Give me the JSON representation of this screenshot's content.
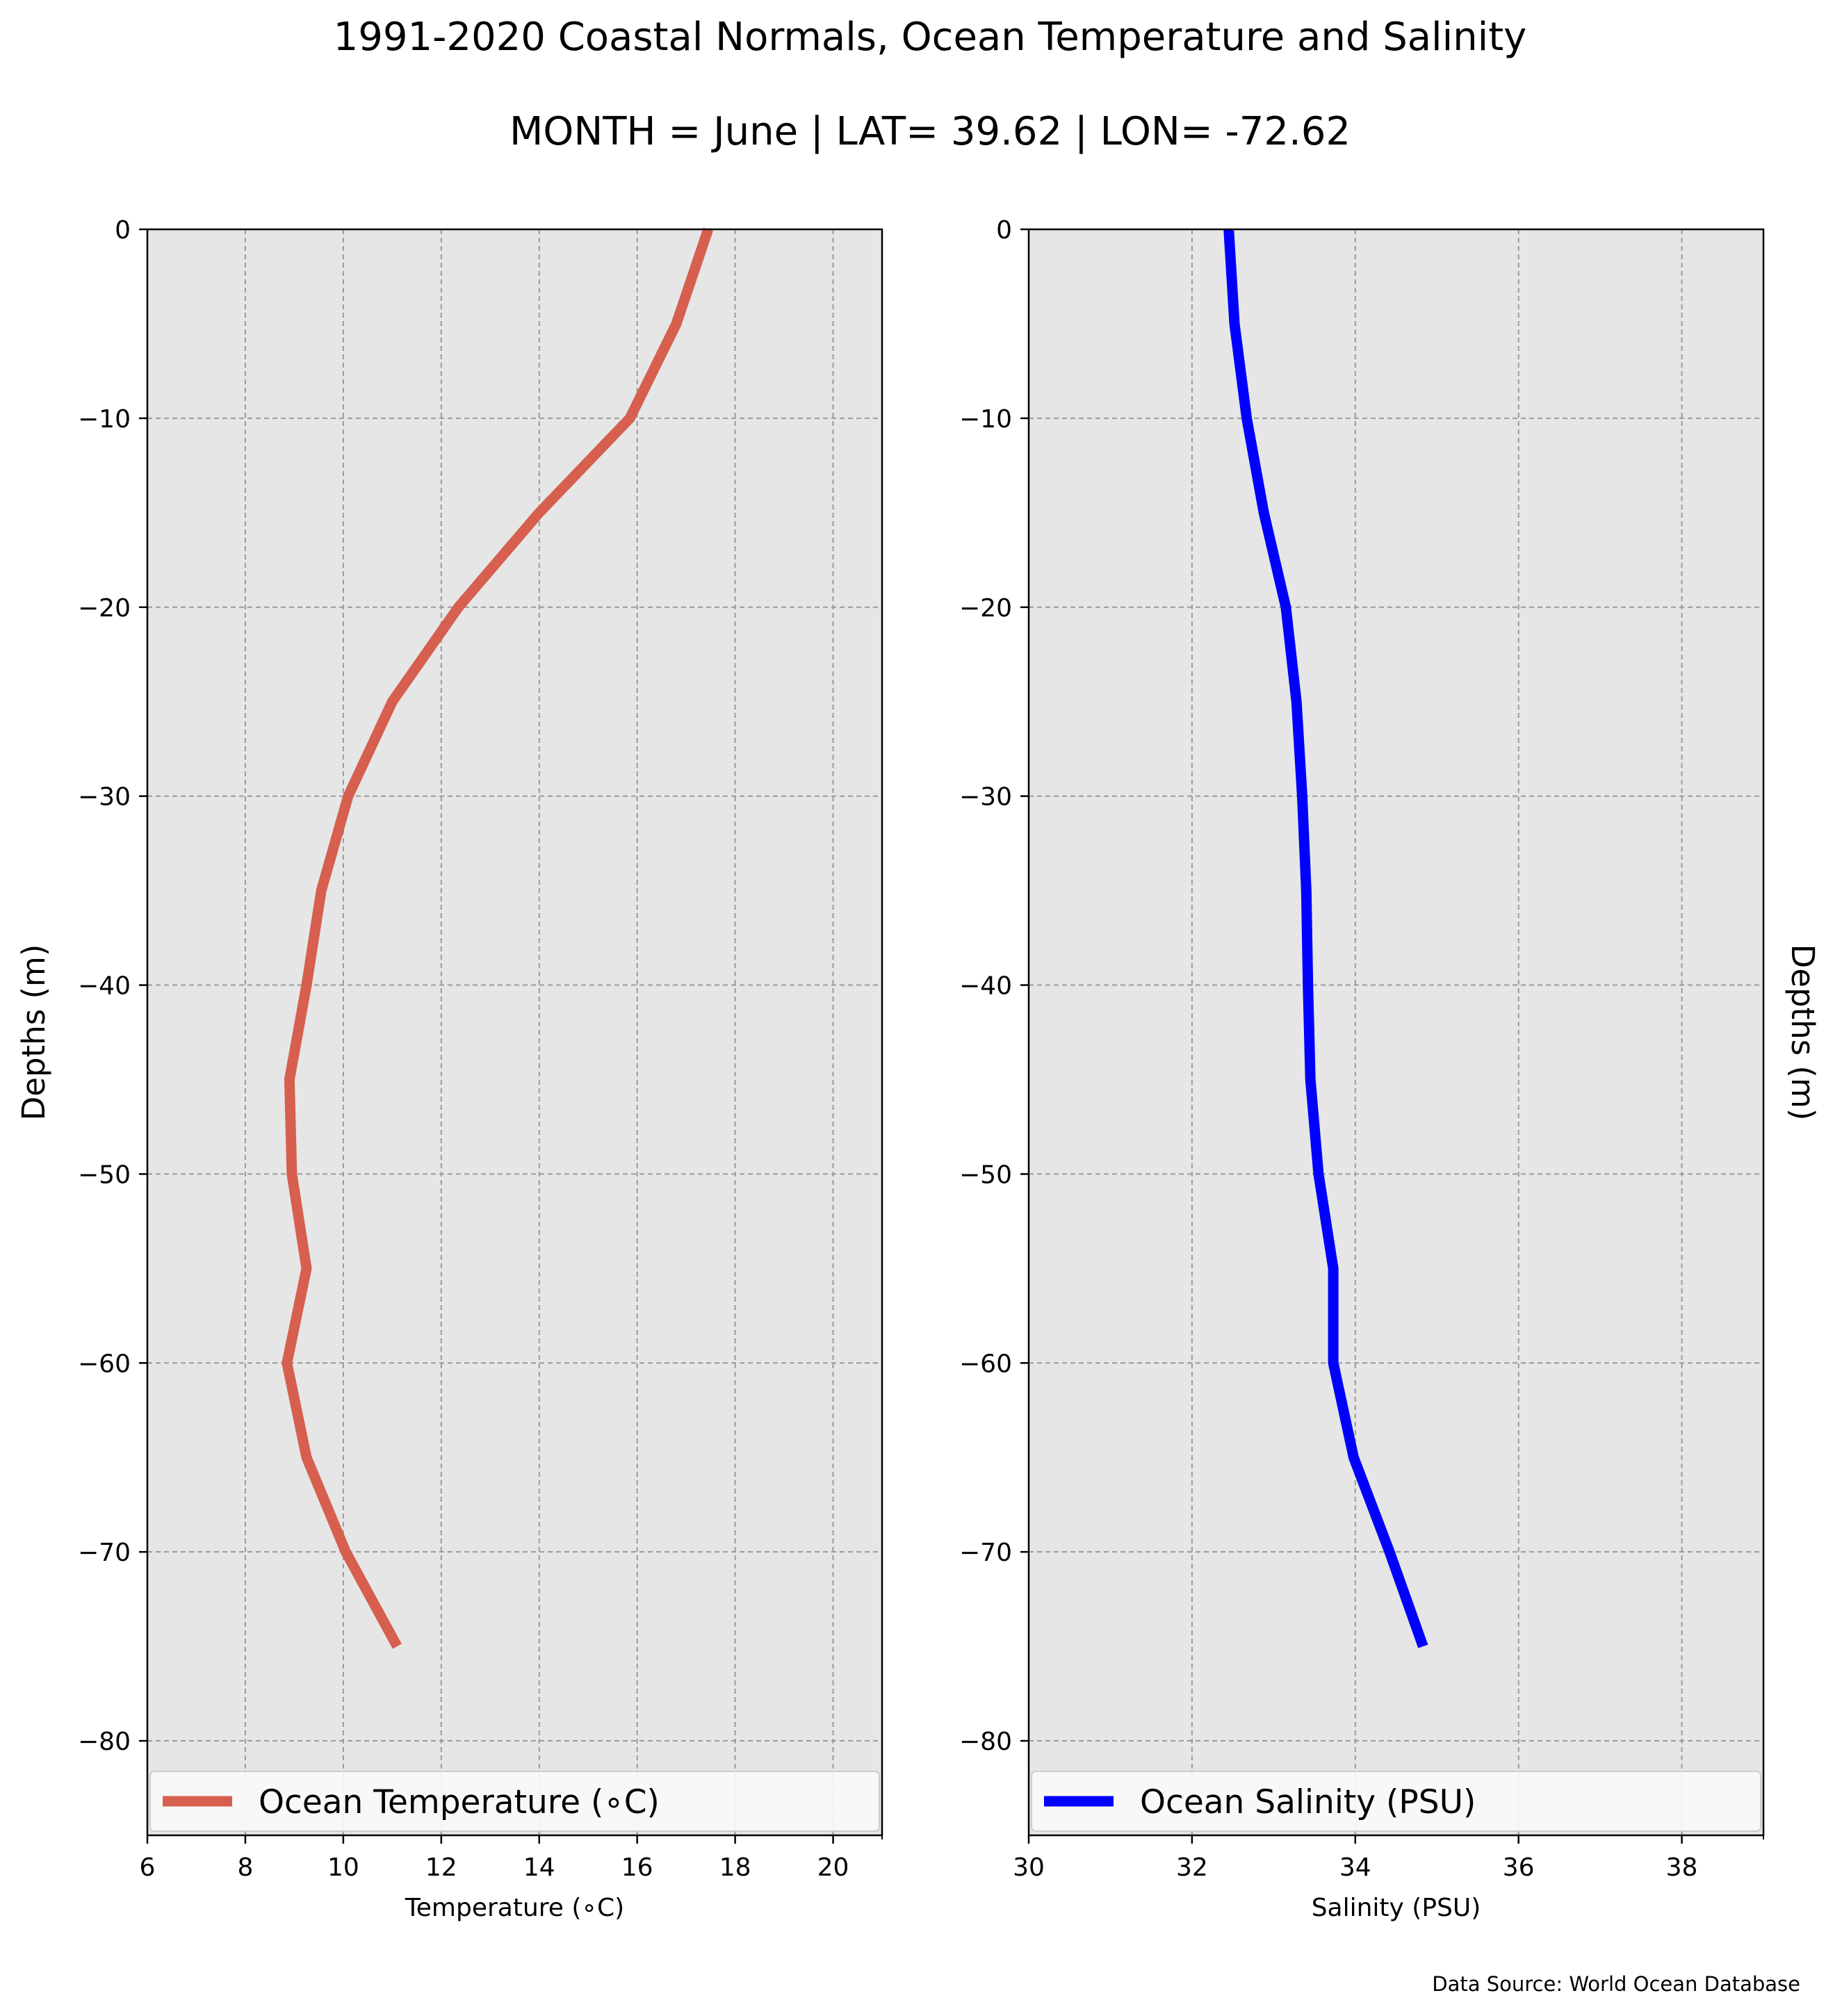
{
  "figure": {
    "title": "1991-2020 Coastal Normals, Ocean Temperature and Salinity",
    "subtitle": "MONTH = June | LAT= 39.62 | LON= -72.62",
    "source_note": "Data Source: World Ocean Database"
  },
  "chart_data": [
    {
      "type": "line",
      "xlabel": "Temperature (∘C)",
      "ylabel": "Depths (m)",
      "xlim": [
        6,
        21
      ],
      "ylim": [
        -85,
        0
      ],
      "xticks": [
        6,
        8,
        10,
        12,
        14,
        16,
        18,
        20
      ],
      "yticks": [
        0,
        -10,
        -20,
        -30,
        -40,
        -50,
        -60,
        -70,
        -80
      ],
      "grid": true,
      "legend_position": "bottom",
      "series": [
        {
          "name": "Ocean Temperature (∘C)",
          "color": "#d65f4f",
          "x": [
            17.45,
            16.8,
            15.85,
            14.0,
            12.35,
            11.0,
            10.1,
            9.55,
            9.25,
            8.9,
            8.95,
            9.25,
            8.85,
            9.25,
            10.05,
            11.1
          ],
          "y": [
            0,
            -5,
            -10,
            -15,
            -20,
            -25,
            -30,
            -35,
            -40,
            -45,
            -50,
            -55,
            -60,
            -65,
            -70,
            -75
          ]
        }
      ]
    },
    {
      "type": "line",
      "xlabel": "Salinity (PSU)",
      "ylabel": "Depths (m)",
      "ylabel_side": "right",
      "xlim": [
        30,
        39
      ],
      "ylim": [
        -85,
        0
      ],
      "xticks": [
        30,
        32,
        34,
        36,
        38
      ],
      "yticks": [
        0,
        -10,
        -20,
        -30,
        -40,
        -50,
        -60,
        -70,
        -80
      ],
      "grid": true,
      "legend_position": "bottom",
      "series": [
        {
          "name": "Ocean Salinity (PSU)",
          "color": "#0000ff",
          "x": [
            32.45,
            32.52,
            32.67,
            32.88,
            33.15,
            33.28,
            33.35,
            33.4,
            33.42,
            33.45,
            33.55,
            33.73,
            33.73,
            33.98,
            34.42,
            34.83
          ],
          "y": [
            0,
            -5,
            -10,
            -15,
            -20,
            -25,
            -30,
            -35,
            -40,
            -45,
            -50,
            -55,
            -60,
            -65,
            -70,
            -75
          ]
        }
      ]
    }
  ]
}
